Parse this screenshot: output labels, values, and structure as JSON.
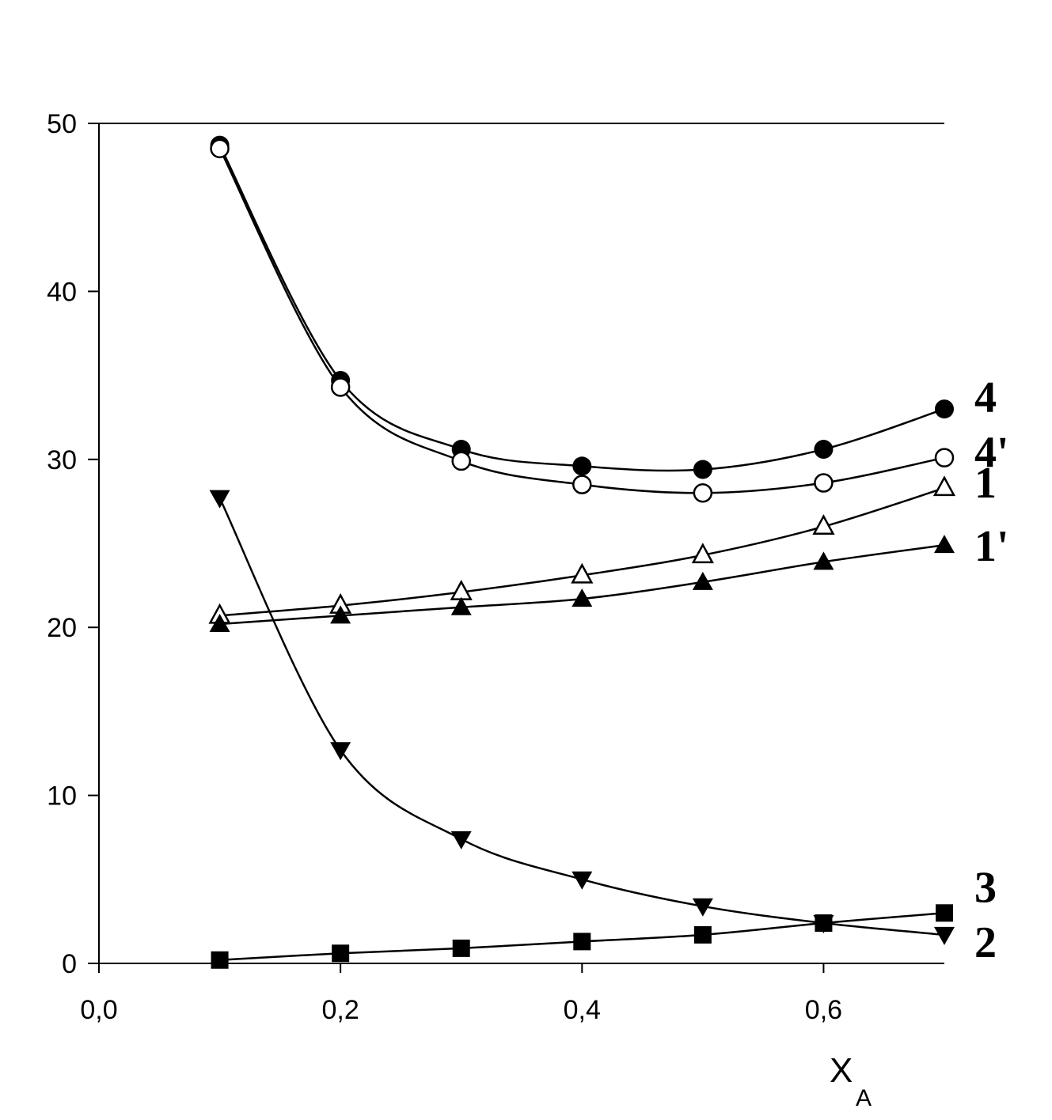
{
  "chart_data": {
    "type": "scatter",
    "xlabel": "X",
    "xlabel_sub": "A",
    "ylabel": "",
    "xlim": [
      0.0,
      0.7
    ],
    "ylim": [
      0,
      50
    ],
    "xticks": [
      0.0,
      0.2,
      0.4,
      0.6
    ],
    "xtick_labels": [
      "0,0",
      "0,2",
      "0,4",
      "0,6"
    ],
    "yticks": [
      0,
      10,
      20,
      30,
      40,
      50
    ],
    "ytick_labels": [
      "0",
      "10",
      "20",
      "30",
      "40",
      "50"
    ],
    "grid": false,
    "x": [
      0.1,
      0.2,
      0.3,
      0.4,
      0.5,
      0.6,
      0.7
    ],
    "series": [
      {
        "name": "4",
        "marker": "filled-circle",
        "values": [
          48.7,
          34.7,
          30.6,
          29.6,
          29.4,
          30.6,
          33.0
        ]
      },
      {
        "name": "4'",
        "marker": "open-circle",
        "values": [
          48.5,
          34.3,
          29.9,
          28.5,
          28.0,
          28.6,
          30.1
        ]
      },
      {
        "name": "1",
        "marker": "open-triangle-up",
        "values": [
          20.7,
          21.3,
          22.1,
          23.1,
          24.3,
          26.0,
          28.3
        ]
      },
      {
        "name": "1'",
        "marker": "filled-triangle-up",
        "values": [
          20.2,
          20.7,
          21.2,
          21.7,
          22.7,
          23.9,
          24.9
        ]
      },
      {
        "name": "2",
        "marker": "filled-triangle-down",
        "values": [
          27.7,
          12.7,
          7.4,
          5.0,
          3.4,
          2.4,
          1.7
        ]
      },
      {
        "name": "3",
        "marker": "filled-square",
        "values": [
          0.2,
          0.6,
          0.9,
          1.3,
          1.7,
          2.4,
          3.0
        ]
      }
    ]
  }
}
